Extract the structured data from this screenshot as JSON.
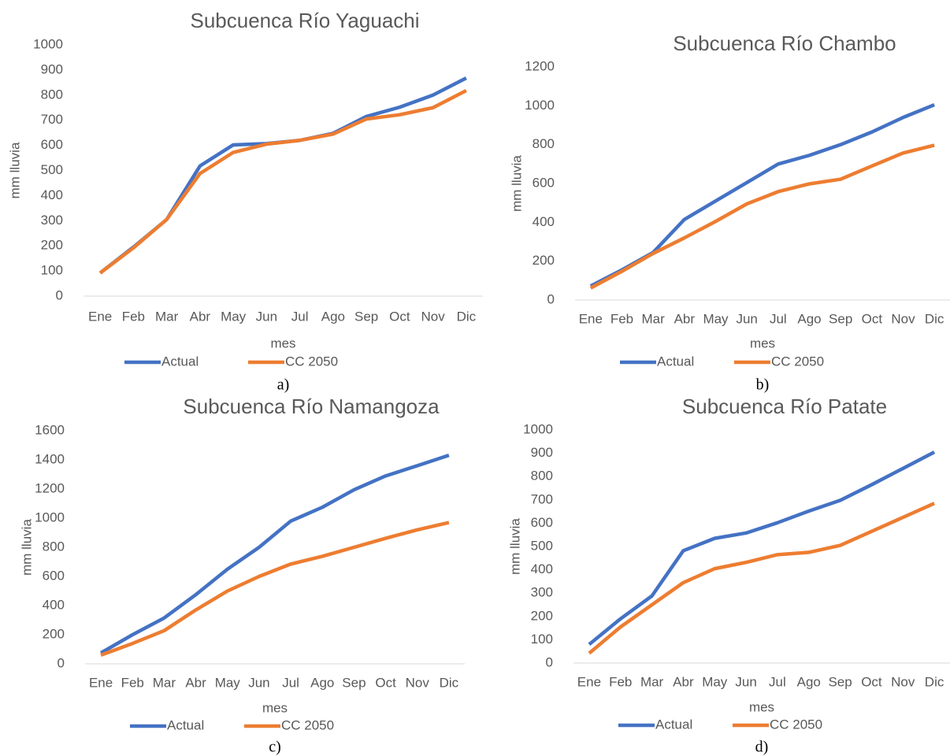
{
  "chart_data": [
    {
      "type": "line",
      "title": "Subcuenca Río Yaguachi",
      "caption": "a)",
      "xlabel": "mes",
      "ylabel": "mm lluvia",
      "categories": [
        "Ene",
        "Feb",
        "Mar",
        "Abr",
        "May",
        "Jun",
        "Jul",
        "Ago",
        "Sep",
        "Oct",
        "Nov",
        "Dic"
      ],
      "series": [
        {
          "name": "Actual",
          "color": "#4472c4",
          "values": [
            92,
            195,
            305,
            518,
            602,
            607,
            620,
            648,
            715,
            752,
            800,
            868
          ]
        },
        {
          "name": "CC 2050",
          "color": "#ed7d31",
          "values": [
            92,
            192,
            305,
            488,
            572,
            605,
            620,
            645,
            705,
            722,
            750,
            818
          ]
        }
      ],
      "ylim": [
        0,
        1000
      ],
      "yticks": [
        0,
        100,
        200,
        300,
        400,
        500,
        600,
        700,
        800,
        900,
        1000
      ],
      "grid": false,
      "legend": "bottom"
    },
    {
      "type": "line",
      "title": "Subcuenca Río Chambo",
      "caption": "b)",
      "xlabel": "mes",
      "ylabel": "mm lluvia",
      "categories": [
        "Ene",
        "Feb",
        "Mar",
        "Abr",
        "May",
        "Jun",
        "Jul",
        "Ago",
        "Sep",
        "Oct",
        "Nov",
        "Dic"
      ],
      "series": [
        {
          "name": "Actual",
          "color": "#4472c4",
          "values": [
            72,
            155,
            245,
            415,
            510,
            605,
            700,
            745,
            800,
            865,
            940,
            1005
          ]
        },
        {
          "name": "CC 2050",
          "color": "#ed7d31",
          "values": [
            62,
            148,
            240,
            320,
            405,
            495,
            558,
            598,
            622,
            690,
            757,
            797
          ]
        }
      ],
      "ylim": [
        0,
        1200
      ],
      "yticks": [
        0,
        200,
        400,
        600,
        800,
        1000,
        1200
      ],
      "grid": false,
      "legend": "bottom"
    },
    {
      "type": "line",
      "title": "Subcuenca Río Namangoza",
      "caption": "c)",
      "xlabel": "mes",
      "ylabel": "mm lluvia",
      "categories": [
        "Ene",
        "Feb",
        "Mar",
        "Abr",
        "May",
        "Jun",
        "Jul",
        "Ago",
        "Sep",
        "Oct",
        "Nov",
        "Dic"
      ],
      "series": [
        {
          "name": "Actual",
          "color": "#4472c4",
          "values": [
            75,
            200,
            315,
            475,
            650,
            800,
            980,
            1075,
            1195,
            1290,
            1360,
            1432
          ]
        },
        {
          "name": "CC 2050",
          "color": "#ed7d31",
          "values": [
            60,
            140,
            228,
            370,
            500,
            600,
            685,
            738,
            800,
            862,
            920,
            970
          ]
        }
      ],
      "ylim": [
        0,
        1600
      ],
      "yticks": [
        0,
        200,
        400,
        600,
        800,
        1000,
        1200,
        1400,
        1600
      ],
      "grid": false,
      "legend": "bottom"
    },
    {
      "type": "line",
      "title": "Subcuenca Río Patate",
      "caption": "d)",
      "xlabel": "mes",
      "ylabel": "mm lluvia",
      "categories": [
        "Ene",
        "Feb",
        "Mar",
        "Abr",
        "May",
        "Jun",
        "Jul",
        "Ago",
        "Sep",
        "Oct",
        "Nov",
        "Dic"
      ],
      "series": [
        {
          "name": "Actual",
          "color": "#4472c4",
          "values": [
            80,
            190,
            288,
            482,
            535,
            558,
            602,
            652,
            698,
            765,
            835,
            905
          ]
        },
        {
          "name": "CC 2050",
          "color": "#ed7d31",
          "values": [
            42,
            155,
            250,
            345,
            405,
            432,
            465,
            475,
            505,
            565,
            625,
            685
          ]
        }
      ],
      "ylim": [
        0,
        1000
      ],
      "yticks": [
        0,
        100,
        200,
        300,
        400,
        500,
        600,
        700,
        800,
        900,
        1000
      ],
      "grid": false,
      "legend": "bottom"
    }
  ]
}
